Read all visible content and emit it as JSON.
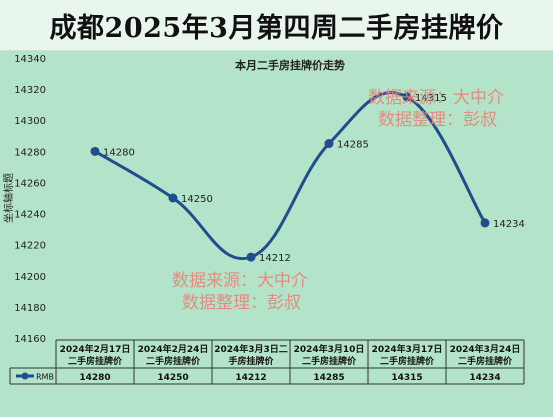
{
  "page_title": "成都2025年3月第四周二手房挂牌价",
  "chart_data": {
    "type": "line",
    "title": "本月二手房挂牌价走势",
    "ylabel": "坐标轴标题",
    "xlabel": "",
    "ylim": [
      14160,
      14340
    ],
    "ytick_step": 20,
    "grid": false,
    "legend": "bottom-left (in data table)",
    "line_color": "#1f4e8c",
    "categories": [
      [
        "2024年2月17日",
        "二手房挂牌价"
      ],
      [
        "2024年2月24日",
        "二手房挂牌价"
      ],
      [
        "2024年3月3日二",
        "手房挂牌价"
      ],
      [
        "2024年3月10日",
        "二手房挂牌价"
      ],
      [
        "2024年3月17日",
        "二手房挂牌价"
      ],
      [
        "2024年3月24日",
        "二手房挂牌价"
      ]
    ],
    "series": [
      {
        "name": "RMB",
        "values": [
          14280,
          14250,
          14212,
          14285,
          14315,
          14234
        ]
      }
    ]
  },
  "watermarks": [
    {
      "line1": "数据来源：大中介",
      "line2": "数据整理：彭叔",
      "color": "#e8837a"
    },
    {
      "line1": "数据来源：大中介",
      "line2": "数据整理：彭叔",
      "color": "#e8837a"
    }
  ]
}
